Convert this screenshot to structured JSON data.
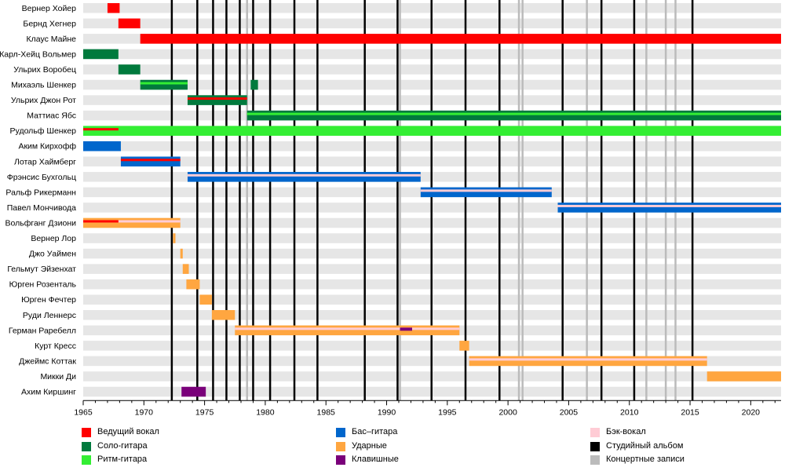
{
  "chart_data": {
    "type": "timeline",
    "x_range": [
      1965,
      2022.5
    ],
    "x_ticks": [
      1965,
      1970,
      1975,
      1980,
      1985,
      1990,
      1995,
      2000,
      2005,
      2010,
      2015,
      2020
    ],
    "grid": true,
    "colors": {
      "lead_vocals": "#ff0000",
      "lead_guitar": "#007a3d",
      "rhythm_guitar": "#33ee33",
      "bass": "#0066cc",
      "drums": "#ffa640",
      "keyboards": "#7a007a",
      "backing_vocals": "#ffccd5",
      "studio_album": "#000000",
      "live": "#bbbbbb"
    },
    "legend": [
      {
        "key": "lead_vocals",
        "label": "Ведущий вокал"
      },
      {
        "key": "lead_guitar",
        "label": "Соло-гитара"
      },
      {
        "key": "rhythm_guitar",
        "label": "Ритм-гитара"
      },
      {
        "key": "bass",
        "label": "Бас–гитара"
      },
      {
        "key": "drums",
        "label": "Ударные"
      },
      {
        "key": "keyboards",
        "label": "Клавишные"
      },
      {
        "key": "backing_vocals",
        "label": "Бэк-вокал"
      },
      {
        "key": "studio_album",
        "label": "Студийный альбом"
      },
      {
        "key": "live",
        "label": "Концертные записи"
      }
    ],
    "studio_albums": [
      1972.3,
      1974.4,
      1975.7,
      1976.8,
      1977.9,
      1979.0,
      1980.4,
      1982.4,
      1984.3,
      1988.2,
      1990.9,
      1993.7,
      1996.5,
      1999.3,
      2004.5,
      2007.7,
      2010.4,
      2015.2
    ],
    "live_albums": [
      1978.5,
      1991.1,
      2000.9,
      2001.2,
      2006.5,
      2011.4,
      2013.0,
      2013.8
    ],
    "members": [
      {
        "name": "Вернер Хойер",
        "roles": [
          {
            "role": "lead_vocals",
            "start": 1967.0,
            "end": 1968.0
          }
        ]
      },
      {
        "name": "Бернд Хегнер",
        "roles": [
          {
            "role": "lead_vocals",
            "start": 1967.9,
            "end": 1969.7
          }
        ]
      },
      {
        "name": "Клаус Майне",
        "roles": [
          {
            "role": "lead_vocals",
            "start": 1969.7,
            "end": 2022.5
          }
        ]
      },
      {
        "name": "Карл-Хейц Вольмер",
        "roles": [
          {
            "role": "lead_guitar",
            "start": 1965.0,
            "end": 1967.9
          }
        ]
      },
      {
        "name": "Ульрих Воробец",
        "roles": [
          {
            "role": "lead_guitar",
            "start": 1967.9,
            "end": 1969.7
          }
        ]
      },
      {
        "name": "Михаэль Шенкер",
        "roles": [
          {
            "role": "lead_guitar",
            "start": 1969.7,
            "end": 1973.6,
            "secondary": "rhythm_guitar"
          },
          {
            "role": "lead_guitar",
            "start": 1978.8,
            "end": 1979.4
          }
        ]
      },
      {
        "name": "Ульрих Джон Рот",
        "roles": [
          {
            "role": "lead_guitar",
            "start": 1973.6,
            "end": 1978.5,
            "secondary": "lead_vocals"
          }
        ]
      },
      {
        "name": "Маттиас Ябс",
        "roles": [
          {
            "role": "lead_guitar",
            "start": 1978.5,
            "end": 2022.5,
            "secondary": "rhythm_guitar"
          }
        ]
      },
      {
        "name": "Рудольф Шенкер",
        "roles": [
          {
            "role": "rhythm_guitar",
            "start": 1965.0,
            "end": 2022.5,
            "secondary": "lead_vocals",
            "secondary_end": 1967.9
          }
        ]
      },
      {
        "name": "Аким Кирхофф",
        "roles": [
          {
            "role": "bass",
            "start": 1965.0,
            "end": 1968.1
          }
        ]
      },
      {
        "name": "Лотар Хаймберг",
        "roles": [
          {
            "role": "bass",
            "start": 1968.1,
            "end": 1973.0,
            "secondary": "lead_vocals"
          }
        ]
      },
      {
        "name": "Фрэнсис Бухгольц",
        "roles": [
          {
            "role": "bass",
            "start": 1973.6,
            "end": 1992.8,
            "secondary": "backing_vocals"
          }
        ]
      },
      {
        "name": "Ральф Рикерманн",
        "roles": [
          {
            "role": "bass",
            "start": 1992.8,
            "end": 2003.6,
            "secondary": "backing_vocals"
          }
        ]
      },
      {
        "name": "Павел Мончивода",
        "roles": [
          {
            "role": "bass",
            "start": 2004.1,
            "end": 2022.5,
            "secondary": "backing_vocals"
          }
        ]
      },
      {
        "name": "Вольфганг Дзиони",
        "roles": [
          {
            "role": "drums",
            "start": 1965.0,
            "end": 1973.0,
            "secondary": "backing_vocals",
            "overlay": "lead_vocals",
            "overlay_end": 1967.9
          }
        ]
      },
      {
        "name": "Вернер Лор",
        "roles": [
          {
            "role": "drums",
            "start": 1972.4,
            "end": 1972.6
          }
        ]
      },
      {
        "name": "Джо Уаймен",
        "roles": [
          {
            "role": "drums",
            "start": 1973.0,
            "end": 1973.2
          }
        ]
      },
      {
        "name": "Гельмут Эйзенхат",
        "roles": [
          {
            "role": "drums",
            "start": 1973.2,
            "end": 1973.7
          }
        ]
      },
      {
        "name": "Юрген Розенталь",
        "roles": [
          {
            "role": "drums",
            "start": 1973.5,
            "end": 1974.6
          }
        ]
      },
      {
        "name": "Юрген Фечтер",
        "roles": [
          {
            "role": "drums",
            "start": 1974.6,
            "end": 1975.6
          }
        ]
      },
      {
        "name": "Руди Леннерс",
        "roles": [
          {
            "role": "drums",
            "start": 1975.6,
            "end": 1977.5
          }
        ]
      },
      {
        "name": "Герман Раребелл",
        "roles": [
          {
            "role": "drums",
            "start": 1977.5,
            "end": 1996.0,
            "secondary": "backing_vocals"
          },
          {
            "role": "keyboards",
            "start": 1991.1,
            "end": 1992.1,
            "thin": true
          }
        ]
      },
      {
        "name": "Курт Кресс",
        "roles": [
          {
            "role": "drums",
            "start": 1996.0,
            "end": 1996.8
          }
        ]
      },
      {
        "name": "Джеймс Коттак",
        "roles": [
          {
            "role": "drums",
            "start": 1996.8,
            "end": 2016.4,
            "secondary": "backing_vocals"
          }
        ]
      },
      {
        "name": "Микки Ди",
        "roles": [
          {
            "role": "drums",
            "start": 2016.4,
            "end": 2022.5
          }
        ]
      },
      {
        "name": "Ахим Киршинг",
        "roles": [
          {
            "role": "keyboards",
            "start": 1973.1,
            "end": 1975.1
          }
        ]
      }
    ]
  }
}
